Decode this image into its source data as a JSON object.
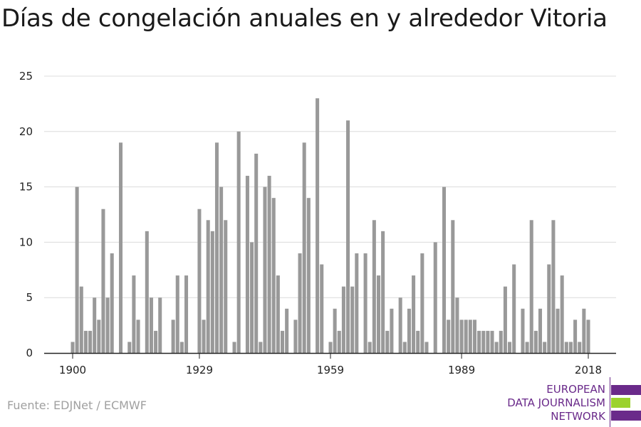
{
  "title": "Días de congelación anuales en y alrededor Vitoria",
  "source": "Fuente: EDJNet / ECMWF",
  "logo": {
    "line1": "EUROPEAN",
    "line2": "DATA JOURNALISM",
    "line3": "NETWORK",
    "colors": {
      "purple": "#6a2a8a",
      "green": "#9bd22e"
    }
  },
  "chart_data": {
    "type": "bar",
    "title": "Días de congelación anuales en y alrededor Vitoria",
    "xlabel": "",
    "ylabel": "",
    "bar_color": "#999999",
    "grid": true,
    "xlim": [
      1900,
      2018
    ],
    "ylim": [
      0,
      25
    ],
    "yticks": [
      0,
      5,
      10,
      15,
      20,
      25
    ],
    "xticks": [
      1900,
      1929,
      1959,
      1989,
      2018
    ],
    "x": [
      1900,
      1901,
      1902,
      1903,
      1904,
      1905,
      1906,
      1907,
      1908,
      1909,
      1910,
      1911,
      1912,
      1913,
      1914,
      1915,
      1916,
      1917,
      1918,
      1919,
      1920,
      1921,
      1922,
      1923,
      1924,
      1925,
      1926,
      1927,
      1928,
      1929,
      1930,
      1931,
      1932,
      1933,
      1934,
      1935,
      1936,
      1937,
      1938,
      1939,
      1940,
      1941,
      1942,
      1943,
      1944,
      1945,
      1946,
      1947,
      1948,
      1949,
      1950,
      1951,
      1952,
      1953,
      1954,
      1955,
      1956,
      1957,
      1958,
      1959,
      1960,
      1961,
      1962,
      1963,
      1964,
      1965,
      1966,
      1967,
      1968,
      1969,
      1970,
      1971,
      1972,
      1973,
      1974,
      1975,
      1976,
      1977,
      1978,
      1979,
      1980,
      1981,
      1982,
      1983,
      1984,
      1985,
      1986,
      1987,
      1988,
      1989,
      1990,
      1991,
      1992,
      1993,
      1994,
      1995,
      1996,
      1997,
      1998,
      1999,
      2000,
      2001,
      2002,
      2003,
      2004,
      2005,
      2006,
      2007,
      2008,
      2009,
      2010,
      2011,
      2012,
      2013,
      2014,
      2015,
      2016,
      2017,
      2018
    ],
    "values": [
      1,
      15,
      6,
      2,
      2,
      5,
      3,
      13,
      5,
      9,
      0,
      19,
      0,
      1,
      7,
      3,
      0,
      11,
      5,
      2,
      5,
      0,
      0,
      3,
      7,
      1,
      7,
      0,
      0,
      13,
      3,
      12,
      11,
      19,
      15,
      12,
      0,
      1,
      20,
      0,
      16,
      10,
      18,
      1,
      15,
      16,
      14,
      7,
      2,
      4,
      0,
      3,
      9,
      19,
      14,
      0,
      23,
      8,
      0,
      1,
      4,
      2,
      6,
      21,
      6,
      9,
      0,
      9,
      1,
      12,
      7,
      11,
      2,
      4,
      0,
      5,
      1,
      4,
      7,
      2,
      9,
      1,
      0,
      10,
      0,
      15,
      3,
      12,
      5,
      3,
      3,
      3,
      3,
      2,
      2,
      2,
      2,
      1,
      2,
      6,
      1,
      8,
      0,
      4,
      1,
      12,
      2,
      4,
      1,
      8,
      12,
      4,
      7,
      1,
      1,
      3,
      1,
      4,
      3
    ]
  }
}
